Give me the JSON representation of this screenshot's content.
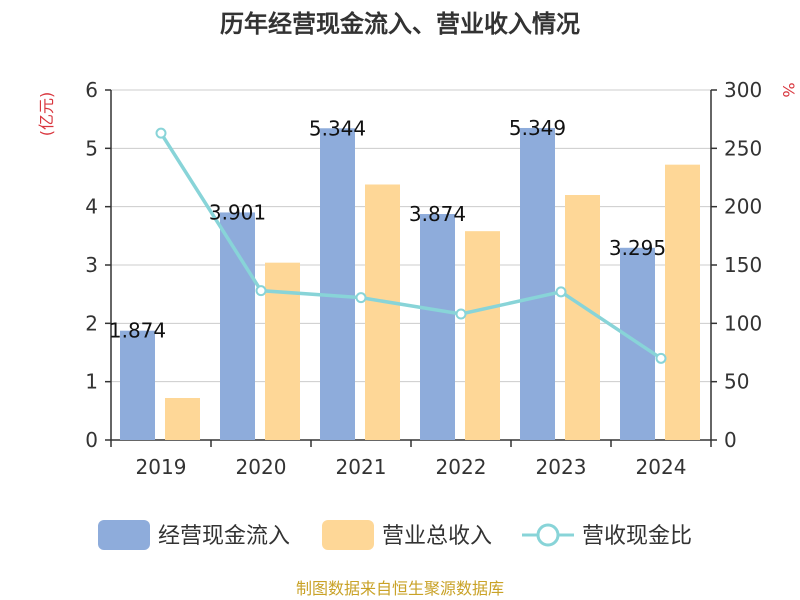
{
  "chart_data": {
    "type": "bar",
    "title": "历年经营现金流入、营业收入情况",
    "categories": [
      "2019",
      "2020",
      "2021",
      "2022",
      "2023",
      "2024"
    ],
    "y_left": {
      "unit": "(亿元)",
      "range": [
        0,
        6
      ],
      "ticks": [
        "0",
        "1",
        "2",
        "3",
        "4",
        "5",
        "6"
      ]
    },
    "y_right": {
      "unit": "%",
      "range": [
        0,
        300
      ],
      "ticks": [
        "0",
        "50",
        "100",
        "150",
        "200",
        "250",
        "300"
      ]
    },
    "series": [
      {
        "name": "经营现金流入",
        "type": "bar",
        "axis": "left",
        "color": "#8eacdb",
        "values": [
          1.874,
          3.901,
          5.344,
          3.874,
          5.349,
          3.295
        ],
        "labels": [
          "1.874",
          "3.901",
          "5.344",
          "3.874",
          "5.349",
          "3.295"
        ]
      },
      {
        "name": "营业总收入",
        "type": "bar",
        "axis": "left",
        "color": "#fed797",
        "values": [
          0.72,
          3.04,
          4.38,
          3.58,
          4.2,
          4.72
        ]
      },
      {
        "name": "营收现金比",
        "type": "line",
        "axis": "right",
        "color": "#88d4d8",
        "values": [
          263,
          128,
          122,
          108,
          127,
          70
        ]
      }
    ],
    "grid": true,
    "legend_position": "bottom"
  },
  "footer": {
    "source": "制图数据来自恒生聚源数据库"
  }
}
